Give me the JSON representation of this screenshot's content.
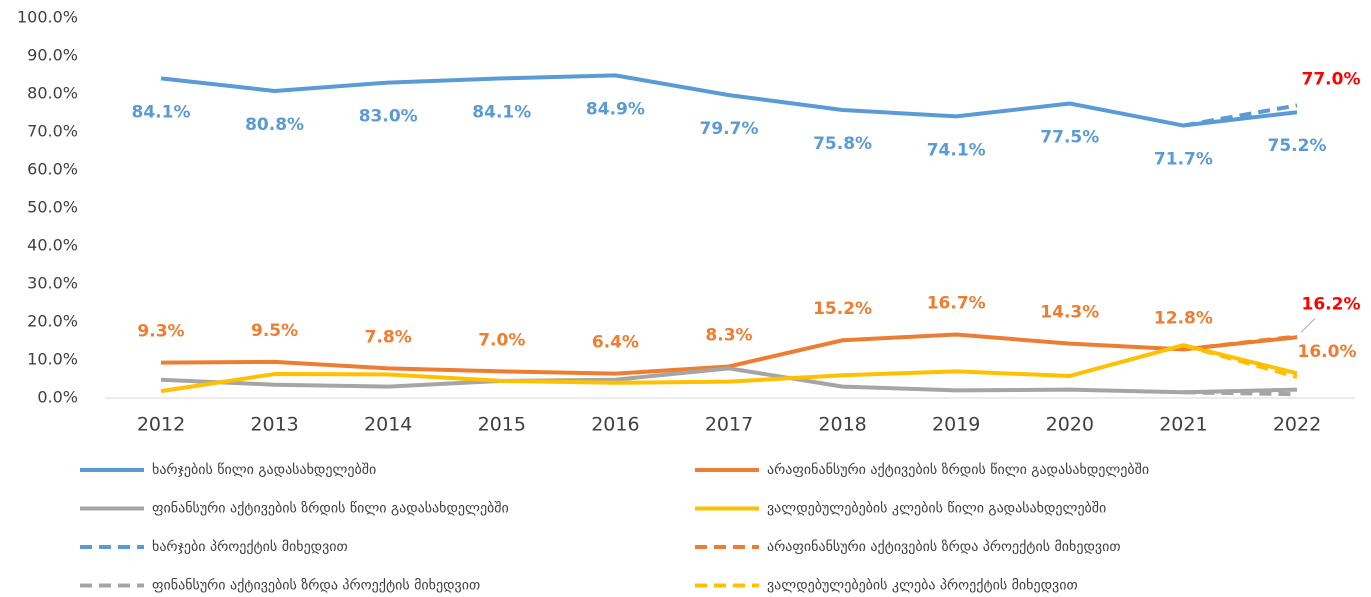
{
  "chart_data": {
    "type": "line",
    "categories": [
      "2012",
      "2013",
      "2014",
      "2015",
      "2016",
      "2017",
      "2018",
      "2019",
      "2020",
      "2021",
      "2022"
    ],
    "ylim": [
      0,
      100
    ],
    "yticks": [
      {
        "value": 0,
        "label": "0.0%"
      },
      {
        "value": 10,
        "label": "10.0%"
      },
      {
        "value": 20,
        "label": "20.0%"
      },
      {
        "value": 30,
        "label": "30.0%"
      },
      {
        "value": 40,
        "label": "40.0%"
      },
      {
        "value": 50,
        "label": "50.0%"
      },
      {
        "value": 60,
        "label": "60.0%"
      },
      {
        "value": 70,
        "label": "70.0%"
      },
      {
        "value": 80,
        "label": "80.0%"
      },
      {
        "value": 90,
        "label": "90.0%"
      },
      {
        "value": 100,
        "label": "100.0%"
      }
    ],
    "grid": false,
    "series": [
      {
        "name": "ხარჯების წილი გადასახდელებში",
        "color": "#5b9bd5",
        "dash": false,
        "label_color": "#5b9bd5",
        "values": [
          84.1,
          80.8,
          83.0,
          84.1,
          84.9,
          79.7,
          75.8,
          74.1,
          77.5,
          71.7,
          75.2
        ],
        "value_labels": [
          "84.1%",
          "80.8%",
          "83.0%",
          "84.1%",
          "84.9%",
          "79.7%",
          "75.8%",
          "74.1%",
          "77.5%",
          "71.7%",
          "75.2%"
        ]
      },
      {
        "name": "არაფინანსური აქტივების ზრდის წილი გადასახდელებში",
        "color": "#ed7d31",
        "dash": false,
        "label_color": "#ed7d31",
        "values": [
          9.3,
          9.5,
          7.8,
          7.0,
          6.4,
          8.3,
          15.2,
          16.7,
          14.3,
          12.8,
          16.0
        ],
        "value_labels": [
          "9.3%",
          "9.5%",
          "7.8%",
          "7.0%",
          "6.4%",
          "8.3%",
          "15.2%",
          "16.7%",
          "14.3%",
          "12.8%",
          "16.0%"
        ]
      },
      {
        "name": "ფინანსური აქტივების ზრდის წილი გადასახდელებში",
        "color": "#a5a5a5",
        "dash": false,
        "values": [
          4.8,
          3.5,
          3.0,
          4.5,
          4.8,
          7.8,
          3.0,
          2.0,
          2.2,
          1.5,
          2.2
        ]
      },
      {
        "name": "ვალდებულებების კლების წილი გადასახდელებში",
        "color": "#ffc000",
        "dash": false,
        "values": [
          1.8,
          6.3,
          6.2,
          4.5,
          4.0,
          4.3,
          6.0,
          7.0,
          5.8,
          13.9,
          6.5
        ]
      },
      {
        "name": "ხარჯები პროექტის მიხედვით",
        "color": "#5b9bd5",
        "dash": true,
        "label_color": "#ff0000",
        "values": [
          null,
          null,
          null,
          null,
          null,
          null,
          null,
          null,
          null,
          71.7,
          77.0
        ],
        "value_labels": [
          null,
          null,
          null,
          null,
          null,
          null,
          null,
          null,
          null,
          null,
          "77.0%"
        ]
      },
      {
        "name": "არაფინანსური აქტივების ზრდა პროექტის მიხედვით",
        "color": "#ed7d31",
        "dash": true,
        "label_color": "#ff0000",
        "values": [
          null,
          null,
          null,
          null,
          null,
          null,
          null,
          null,
          null,
          12.8,
          16.2
        ],
        "value_labels": [
          null,
          null,
          null,
          null,
          null,
          null,
          null,
          null,
          null,
          null,
          "16.2%"
        ]
      },
      {
        "name": "ფინანსური აქტივების ზრდა პროექტის მიხედვით",
        "color": "#a5a5a5",
        "dash": true,
        "values": [
          null,
          null,
          null,
          null,
          null,
          null,
          null,
          null,
          null,
          1.5,
          1.0
        ]
      },
      {
        "name": "ვალდებულებების კლება პროექტის მიხედვით",
        "color": "#ffc000",
        "dash": true,
        "values": [
          null,
          null,
          null,
          null,
          null,
          null,
          null,
          null,
          null,
          13.9,
          5.5
        ]
      }
    ]
  }
}
